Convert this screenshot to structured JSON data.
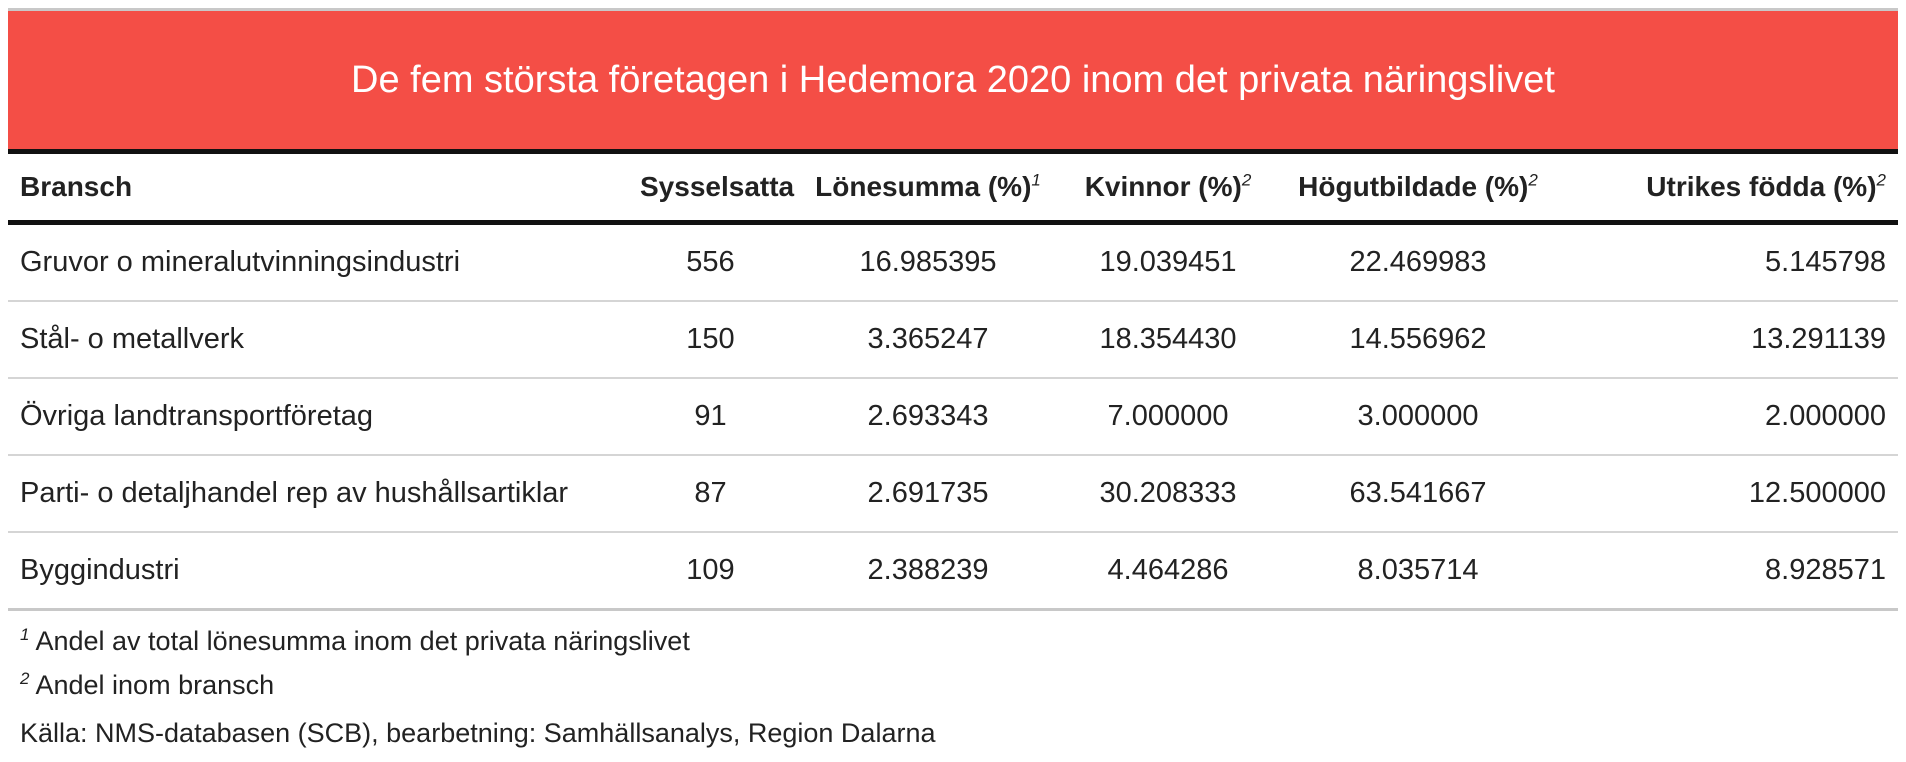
{
  "title": "De fem största företagen i Hedemora 2020 inom det privata näringslivet",
  "columns": [
    {
      "label": "Bransch",
      "note": ""
    },
    {
      "label": "Sysselsatta",
      "note": ""
    },
    {
      "label": "Lönesumma (%)",
      "note": "1"
    },
    {
      "label": "Kvinnor (%)",
      "note": "2"
    },
    {
      "label": "Högutbildade (%)",
      "note": "2"
    },
    {
      "label": "Utrikes födda (%)",
      "note": "2"
    }
  ],
  "rows": [
    [
      "Gruvor o mineralutvinningsindustri",
      "556",
      "16.985395",
      "19.039451",
      "22.469983",
      "5.145798"
    ],
    [
      "Stål- o metallverk",
      "150",
      "3.365247",
      "18.354430",
      "14.556962",
      "13.291139"
    ],
    [
      "Övriga landtransportföretag",
      "91",
      "2.693343",
      "7.000000",
      "3.000000",
      "2.000000"
    ],
    [
      "Parti- o detaljhandel rep av hushållsartiklar",
      "87",
      "2.691735",
      "30.208333",
      "63.541667",
      "12.500000"
    ],
    [
      "Byggindustri",
      "109",
      "2.388239",
      "4.464286",
      "8.035714",
      "8.928571"
    ]
  ],
  "footnotes": [
    {
      "mark": "1",
      "text": "Andel av total lönesumma inom det privata näringslivet"
    },
    {
      "mark": "2",
      "text": "Andel inom bransch"
    }
  ],
  "source": "Källa: NMS-databasen (SCB), bearbetning: Samhällsanalys, Region Dalarna",
  "colors": {
    "banner": "#f44e46",
    "banner_text": "#ffffff"
  }
}
